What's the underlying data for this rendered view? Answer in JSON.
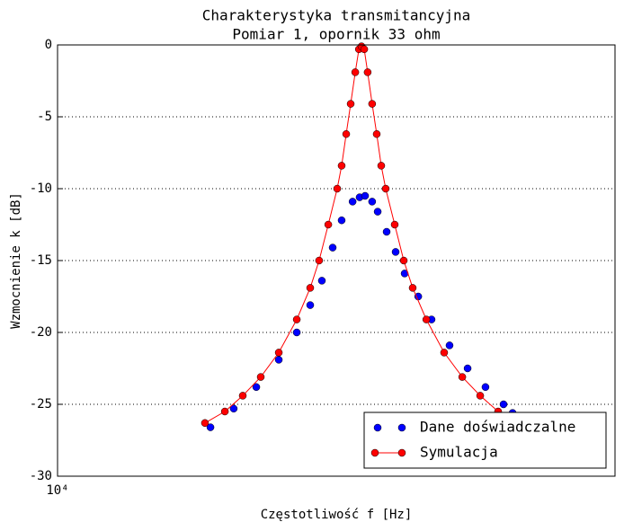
{
  "chart_data": {
    "type": "line",
    "title": "Charakterystyka transmitancyjna",
    "subtitle": "Pomiar 1, opornik 33 ohm",
    "x_label": "Częstotliwość f [Hz]",
    "y_label": "Wzmocnienie k [dB]",
    "xscale": "log",
    "xlim": [
      10000,
      50000
    ],
    "xticks": [
      {
        "value": 10000,
        "label": "10⁴"
      }
    ],
    "ylim": [
      -30,
      0
    ],
    "yticks": [
      -30,
      -25,
      -20,
      -15,
      -10,
      -5,
      0
    ],
    "grid": true,
    "legend": "lower right",
    "series": [
      {
        "name": "Dane doświadczalne",
        "color": "#0000ff",
        "linestyle": "none",
        "x": [
          15550,
          16630,
          17750,
          18940,
          19950,
          20740,
          21450,
          22130,
          22710,
          23440,
          23920,
          24300,
          24800,
          25200,
          25860,
          26540,
          27240,
          28330,
          29440,
          31010,
          32670,
          34400,
          36240,
          37200
        ],
        "values": [
          -26.6,
          -25.3,
          -23.8,
          -21.9,
          -20,
          -18.1,
          -16.4,
          -14.1,
          -12.2,
          -10.9,
          -10.6,
          -10.5,
          -10.9,
          -11.6,
          -13,
          -14.4,
          -15.9,
          -17.5,
          -19.1,
          -20.9,
          -22.5,
          -23.8,
          -25,
          -25.6
        ]
      },
      {
        "name": "Symulacja",
        "color": "#ff0000",
        "linestyle": "solid",
        "x": [
          15305,
          16210,
          17070,
          17980,
          18940,
          19950,
          20740,
          21280,
          21850,
          22420,
          22710,
          23010,
          23310,
          23620,
          23870,
          24050,
          24240,
          24480,
          24800,
          25130,
          25460,
          25790,
          26470,
          27170,
          27880,
          29000,
          30530,
          32170,
          33880,
          35680,
          37780
        ],
        "values": [
          -26.3,
          -25.5,
          -24.4,
          -23.1,
          -21.4,
          -19.1,
          -16.9,
          -15,
          -12.5,
          -10,
          -8.4,
          -6.2,
          -4.1,
          -1.9,
          -0.3,
          -0.1,
          -0.3,
          -1.9,
          -4.1,
          -6.2,
          -8.4,
          -10,
          -12.5,
          -15,
          -16.9,
          -19.1,
          -21.4,
          -23.1,
          -24.4,
          -25.5,
          -26.3
        ]
      }
    ]
  }
}
